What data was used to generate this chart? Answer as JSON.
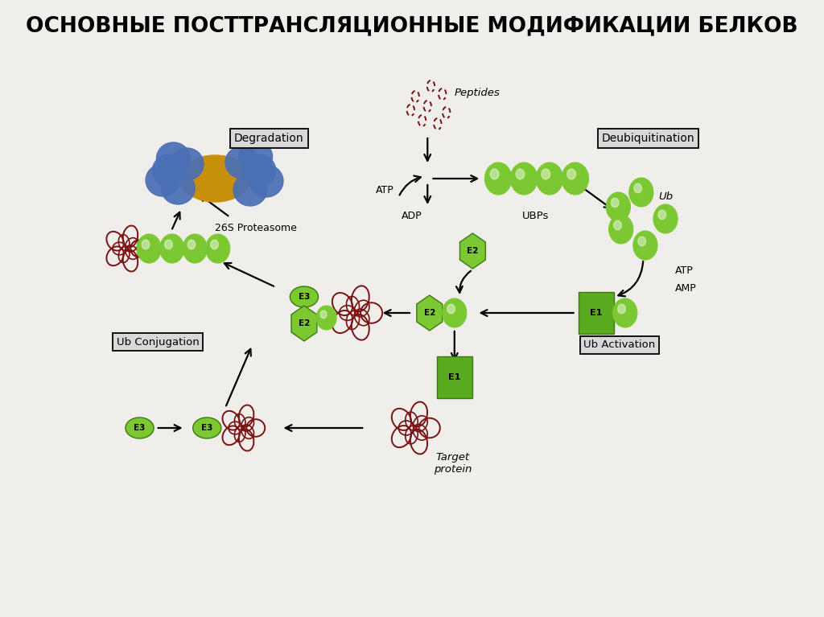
{
  "title": "ОСНОВНЫЕ ПОСТТРАНСЛЯЦИОННЫЕ МОДИФИКАЦИИ БЕЛКОВ",
  "title_fontsize": 19,
  "title_fontweight": "bold",
  "bg_color": "#f0eeea",
  "labels": {
    "degradation": "Degradation",
    "deubiquitination": "Deubiquitination",
    "ub_conjugation": "Ub Conjugation",
    "ub_activation": "Ub Activation",
    "proteasome": "26S Proteasome",
    "ubps": "UBPs",
    "atp1": "ATP",
    "adp": "ADP",
    "peptides": "Peptides",
    "ub": "Ub",
    "atp2": "ATP",
    "amp": "AMP",
    "e1": "E1",
    "e2": "E2",
    "e3": "E3",
    "target": "Target\nprotein"
  },
  "colors": {
    "green_ub": "#7bc832",
    "green_dark": "#3a7a10",
    "green_mid": "#5aaa20",
    "blue_proteasome": "#4a6fb5",
    "gold_proteasome": "#c8900a",
    "dark_red": "#7a1010",
    "arrow": "#111111",
    "box_bg": "#dcdcdc",
    "box_border": "#222222",
    "white": "#ffffff",
    "e1_color": "#5aaa20",
    "e3_color": "#7bc832"
  }
}
